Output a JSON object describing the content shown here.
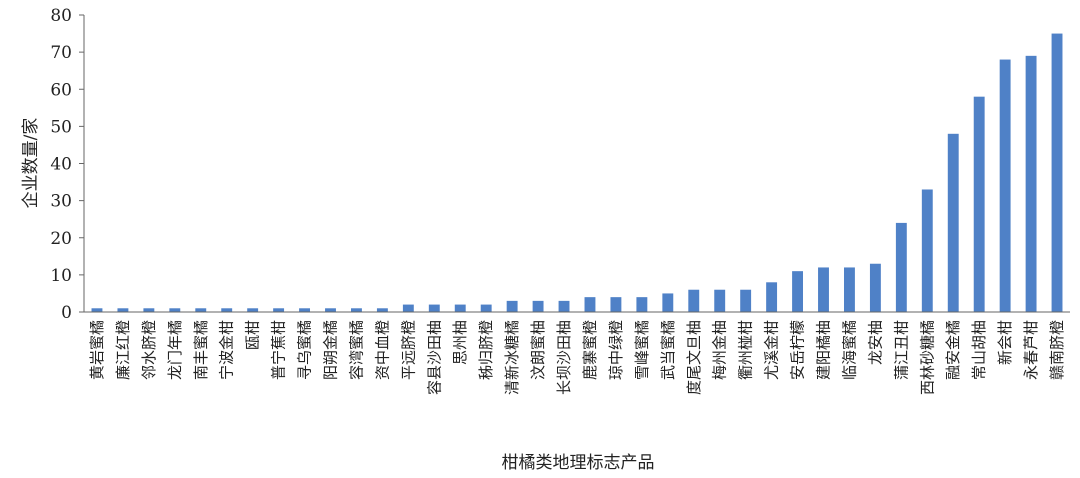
{
  "chart_data": {
    "type": "bar",
    "xlabel": "柑橘类地理标志产品",
    "ylabel": "企业数量/家",
    "ylim": [
      0,
      80
    ],
    "yticks": [
      "0",
      "10",
      "20",
      "30",
      "40",
      "50",
      "60",
      "70",
      "80"
    ],
    "grid": false,
    "legend": "none",
    "bar_color": "#4f81c7",
    "categories": [
      "黄岩蜜橘",
      "廉江红橙",
      "邻水脐橙",
      "龙门年橘",
      "南丰蜜橘",
      "宁波金柑",
      "瓯柑",
      "普宁蕉柑",
      "寻乌蜜橘",
      "阳朔金橘",
      "容湾蜜橘",
      "资中血橙",
      "平远脐橙",
      "容县沙田柚",
      "思州柚",
      "秭归脐橙",
      "清新冰糖橘",
      "汶朗蜜柚",
      "长坝沙田柚",
      "鹿寨蜜橙",
      "琼中绿橙",
      "雪峰蜜橘",
      "武当蜜橘",
      "度尾文旦柚",
      "梅州金柚",
      "衢州椪柑",
      "尤溪金柑",
      "安岳柠檬",
      "建阳橘柚",
      "临海蜜橘",
      "龙安柚",
      "蒲江丑柑",
      "西林砂糖橘",
      "融安金橘",
      "常山胡柚",
      "新会柑",
      "永春芦柑",
      "赣南脐橙"
    ],
    "values": [
      1,
      1,
      1,
      1,
      1,
      1,
      1,
      1,
      1,
      1,
      1,
      1,
      2,
      2,
      2,
      2,
      3,
      3,
      3,
      4,
      4,
      4,
      5,
      6,
      6,
      6,
      8,
      11,
      12,
      12,
      13,
      24,
      33,
      48,
      58,
      68,
      69,
      75
    ]
  }
}
